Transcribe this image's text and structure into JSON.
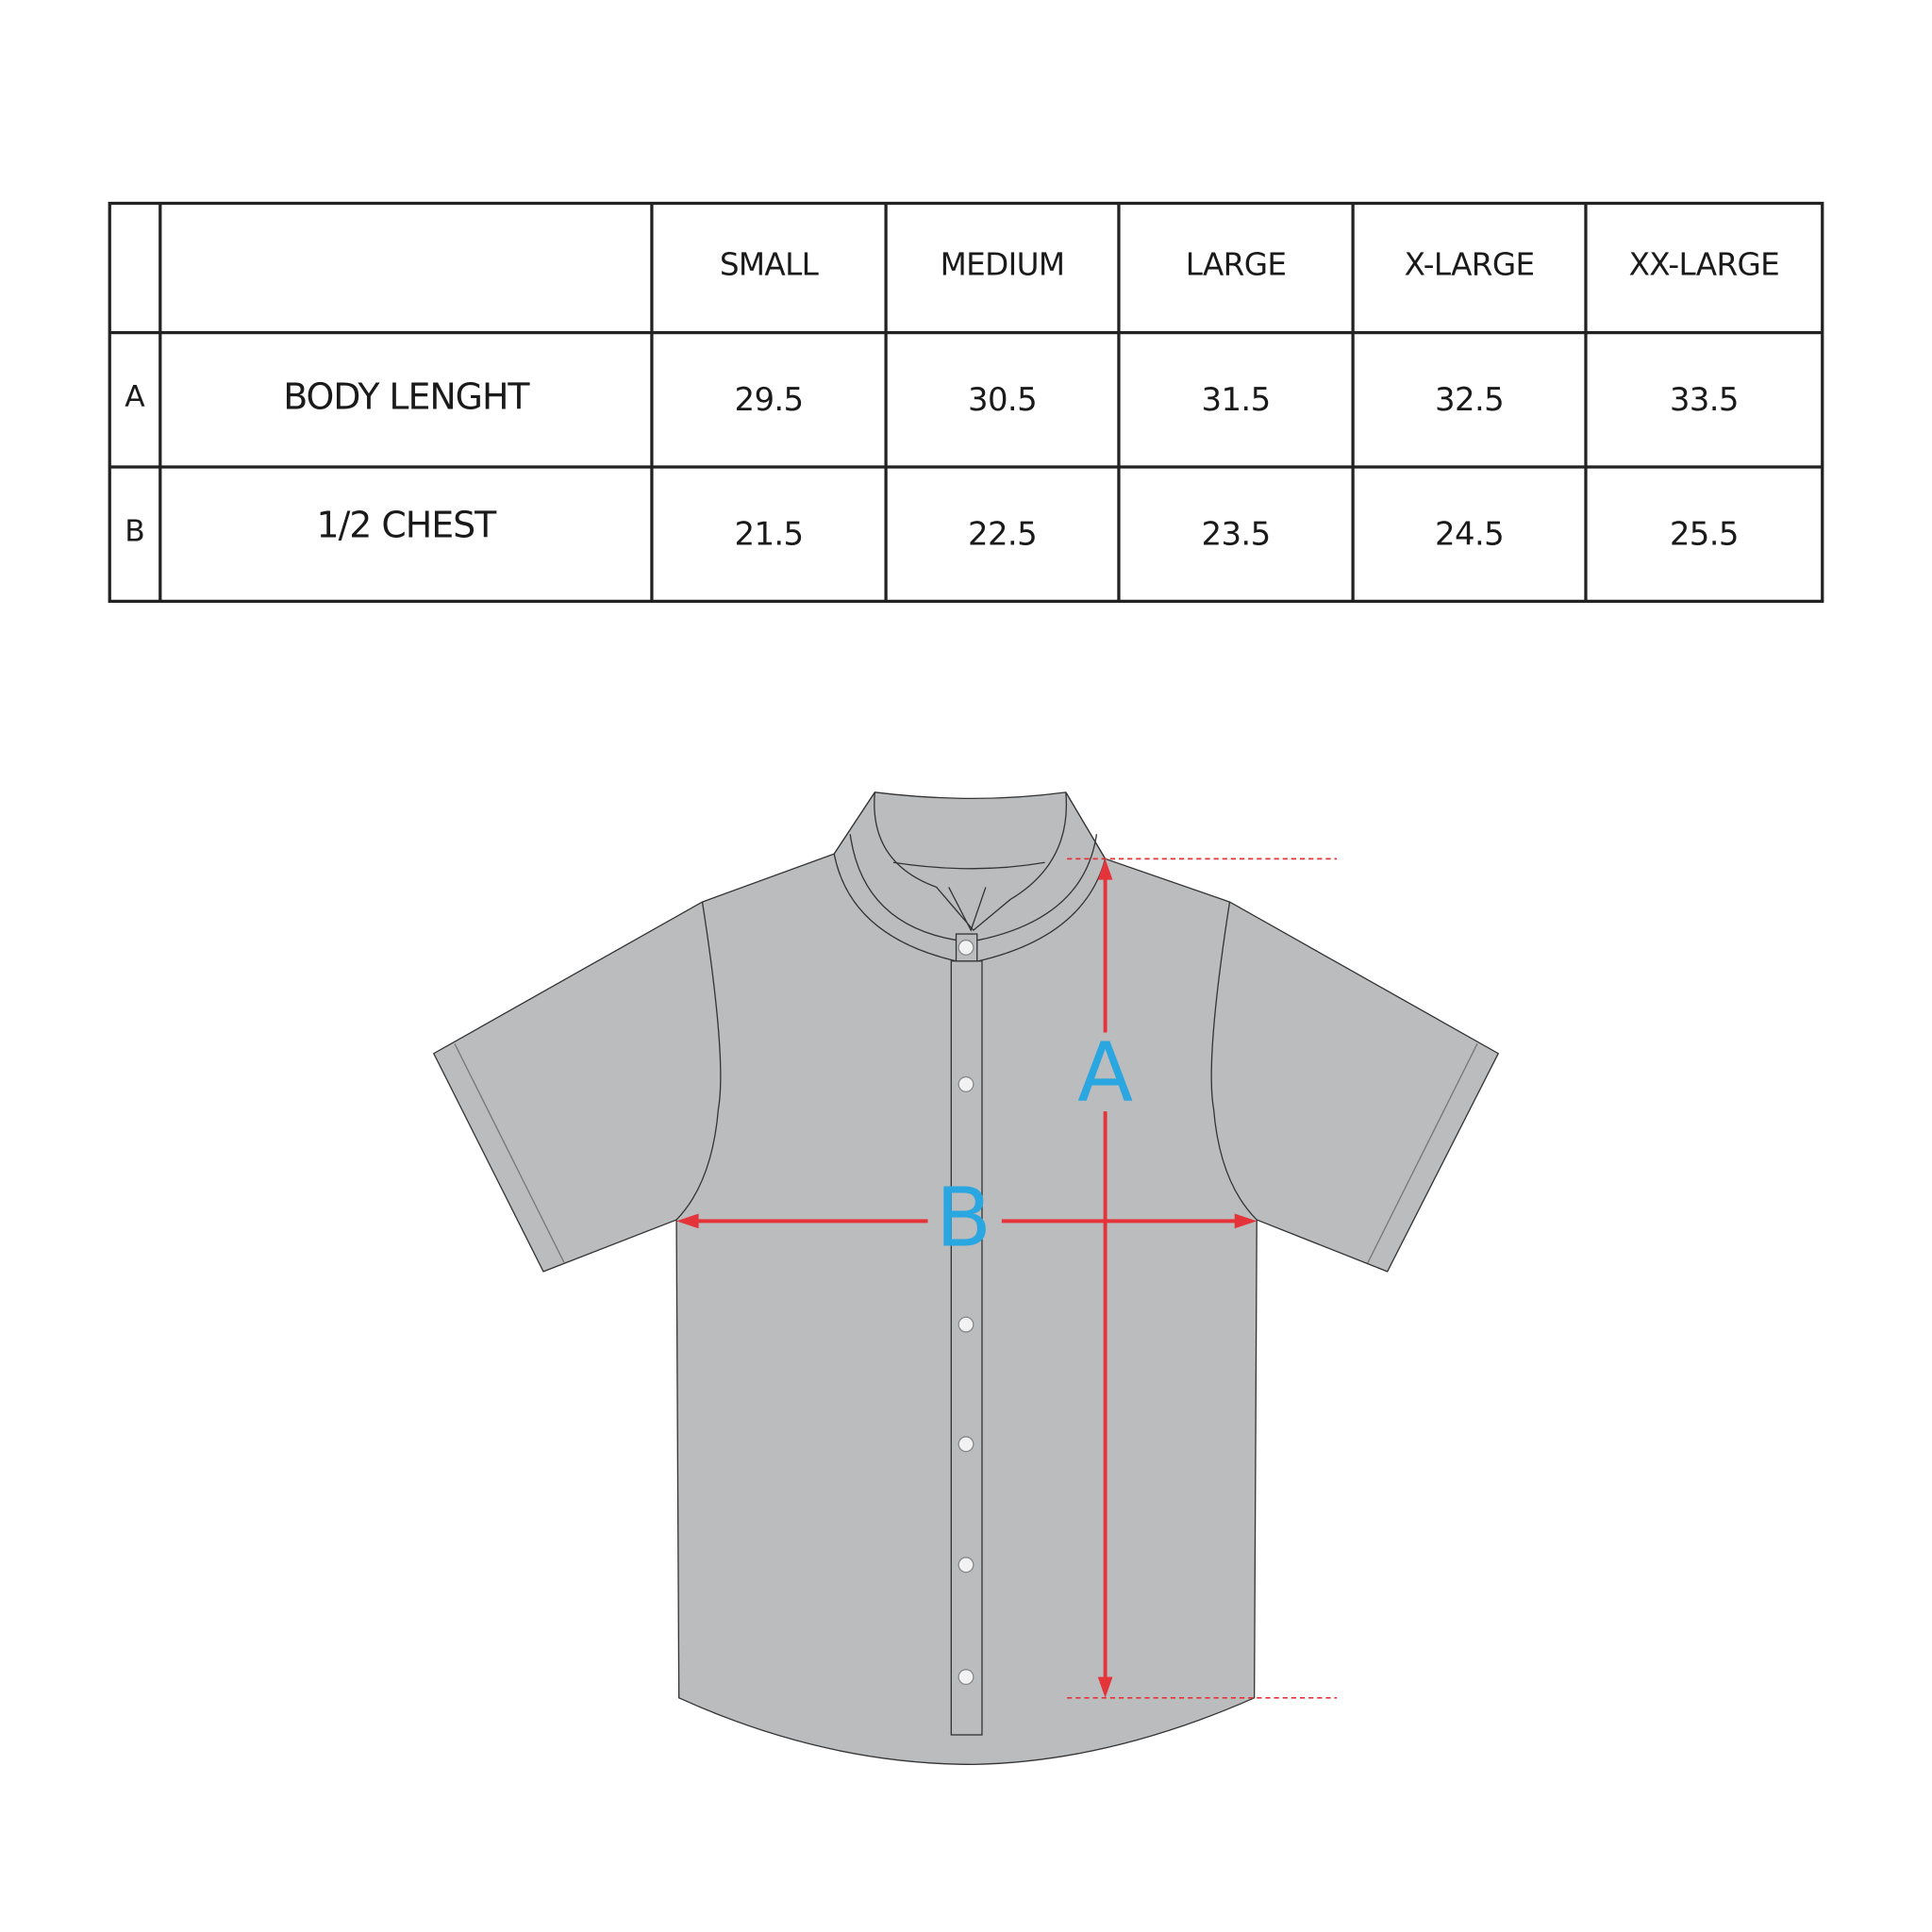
{
  "table": {
    "headers": [
      "SMALL",
      "MEDIUM",
      "LARGE",
      "X-LARGE",
      "XX-LARGE"
    ],
    "rows": [
      {
        "key": "A",
        "label": "BODY LENGHT",
        "values": [
          "29.5",
          "30.5",
          "31.5",
          "32.5",
          "33.5"
        ]
      },
      {
        "key": "B",
        "label": "1/2 CHEST",
        "values": [
          "21.5",
          "22.5",
          "23.5",
          "24.5",
          "25.5"
        ]
      }
    ]
  },
  "diagram": {
    "label_a": "A",
    "label_b": "B",
    "colors": {
      "shirt": "#bbbcbe",
      "arrow": "#e5333a",
      "label": "#2aa6e1",
      "outline": "#333333"
    }
  }
}
